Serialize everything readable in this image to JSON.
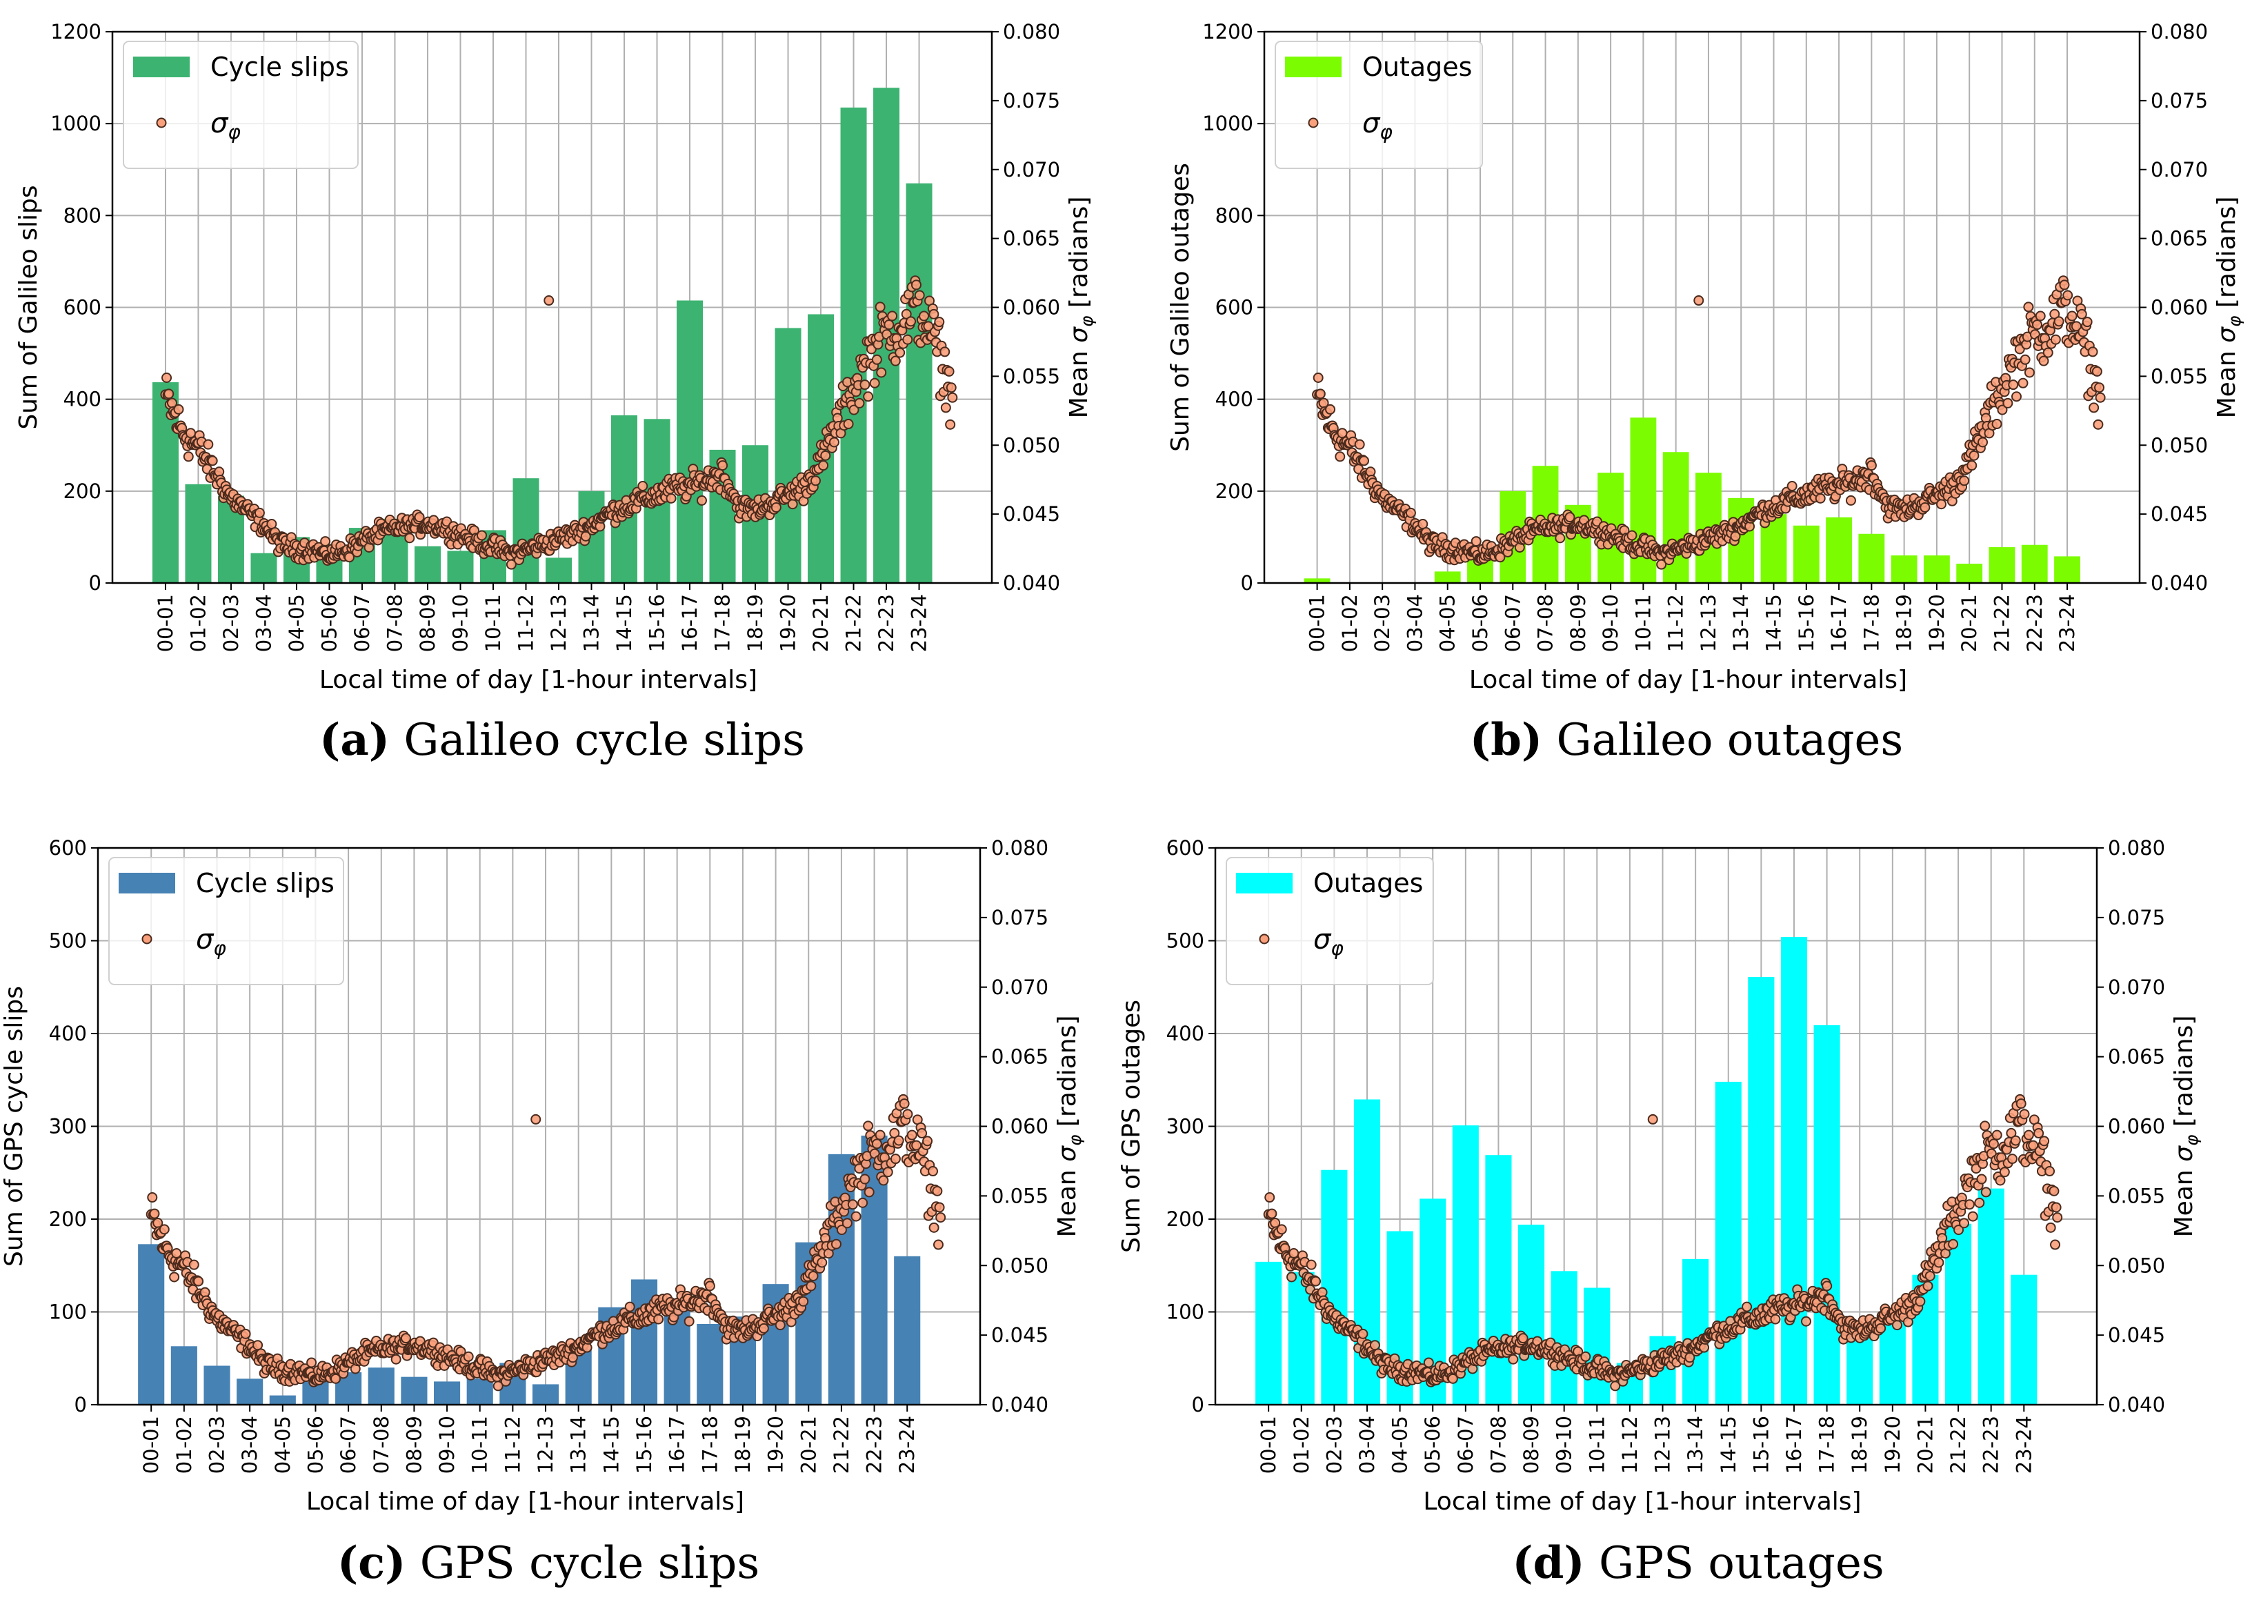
{
  "shared": {
    "x_categories": [
      "00-01",
      "01-02",
      "02-03",
      "03-04",
      "04-05",
      "05-06",
      "06-07",
      "07-08",
      "08-09",
      "09-10",
      "10-11",
      "11-12",
      "12-13",
      "13-14",
      "14-15",
      "15-16",
      "16-17",
      "17-18",
      "18-19",
      "19-20",
      "20-21",
      "21-22",
      "22-23",
      "23-24"
    ],
    "xlabel": "Local time of day [1-hour intervals]",
    "y2label": "Mean σφ [radians]",
    "y2lim": [
      0.04,
      0.08
    ],
    "y2ticks": [
      "0.040",
      "0.045",
      "0.050",
      "0.055",
      "0.060",
      "0.065",
      "0.070",
      "0.075",
      "0.080"
    ],
    "sigma_legend": "σφ",
    "sigma_color": "#f9a07c",
    "sigma_curve_hours": [
      0,
      0.5,
      1,
      1.5,
      2,
      2.5,
      3,
      3.5,
      4,
      4.5,
      5,
      5.5,
      6,
      6.5,
      7,
      7.5,
      8,
      8.5,
      9,
      9.5,
      10,
      10.5,
      11,
      11.5,
      12,
      12.5,
      13,
      13.5,
      14,
      14.5,
      15,
      15.5,
      16,
      16.5,
      17,
      17.5,
      18,
      18.5,
      19,
      19.5,
      20,
      20.5,
      21,
      21.5,
      22,
      22.5,
      23,
      23.5,
      24
    ],
    "sigma_curve_values": [
      0.0535,
      0.051,
      0.0498,
      0.048,
      0.0462,
      0.0452,
      0.0442,
      0.0428,
      0.0425,
      0.0424,
      0.042,
      0.0424,
      0.043,
      0.0436,
      0.044,
      0.0441,
      0.0443,
      0.044,
      0.0435,
      0.043,
      0.0426,
      0.0421,
      0.0424,
      0.0428,
      0.0432,
      0.0436,
      0.0442,
      0.045,
      0.0455,
      0.046,
      0.0464,
      0.0468,
      0.047,
      0.0474,
      0.048,
      0.0455,
      0.0453,
      0.0458,
      0.0464,
      0.047,
      0.0488,
      0.0515,
      0.054,
      0.0565,
      0.058,
      0.0588,
      0.06,
      0.0575,
      0.0535
    ],
    "sigma_outlier": {
      "hour": 11.7,
      "value": 0.0605
    }
  },
  "chart_data": [
    {
      "type": "bar",
      "panel": "a",
      "caption_label": "(a)",
      "caption_text": "Galileo cycle slips",
      "ylabel": "Sum of Galileo slips",
      "legend_label": "Cycle slips",
      "bar_color": "#3cb371",
      "ylim": [
        0,
        1200
      ],
      "yticks": [
        "0",
        "200",
        "400",
        "600",
        "800",
        "1000",
        "1200"
      ],
      "values": [
        437,
        215,
        190,
        65,
        100,
        85,
        120,
        140,
        80,
        70,
        115,
        228,
        55,
        200,
        365,
        357,
        615,
        290,
        300,
        555,
        585,
        1035,
        1078,
        870
      ]
    },
    {
      "type": "bar",
      "panel": "b",
      "caption_label": "(b)",
      "caption_text": "Galileo outages",
      "ylabel": "Sum of Galileo outages",
      "legend_label": "Outages",
      "bar_color": "#7cfc00",
      "ylim": [
        0,
        1200
      ],
      "yticks": [
        "0",
        "200",
        "400",
        "600",
        "800",
        "1000",
        "1200"
      ],
      "values": [
        10,
        0,
        0,
        0,
        25,
        60,
        200,
        255,
        170,
        240,
        360,
        285,
        240,
        185,
        150,
        125,
        143,
        107,
        60,
        60,
        42,
        78,
        83,
        58
      ]
    },
    {
      "type": "bar",
      "panel": "c",
      "caption_label": "(c)",
      "caption_text": "GPS cycle slips",
      "ylabel": "Sum of GPS cycle slips",
      "legend_label": "Cycle slips",
      "bar_color": "#4682b4",
      "ylim": [
        0,
        600
      ],
      "yticks": [
        "0",
        "100",
        "200",
        "300",
        "400",
        "500",
        "600"
      ],
      "values": [
        173,
        63,
        42,
        28,
        10,
        25,
        35,
        40,
        30,
        25,
        28,
        45,
        22,
        60,
        105,
        135,
        110,
        87,
        95,
        130,
        175,
        270,
        290,
        160
      ]
    },
    {
      "type": "bar",
      "panel": "d",
      "caption_label": "(d)",
      "caption_text": "GPS outages",
      "ylabel": "Sum of GPS outages",
      "legend_label": "Outages",
      "bar_color": "#00ffff",
      "ylim": [
        0,
        600
      ],
      "yticks": [
        "0",
        "100",
        "200",
        "300",
        "400",
        "500",
        "600"
      ],
      "values": [
        154,
        143,
        253,
        329,
        187,
        222,
        301,
        269,
        194,
        144,
        126,
        45,
        74,
        157,
        348,
        461,
        504,
        409,
        80,
        100,
        140,
        195,
        233,
        140
      ]
    }
  ]
}
